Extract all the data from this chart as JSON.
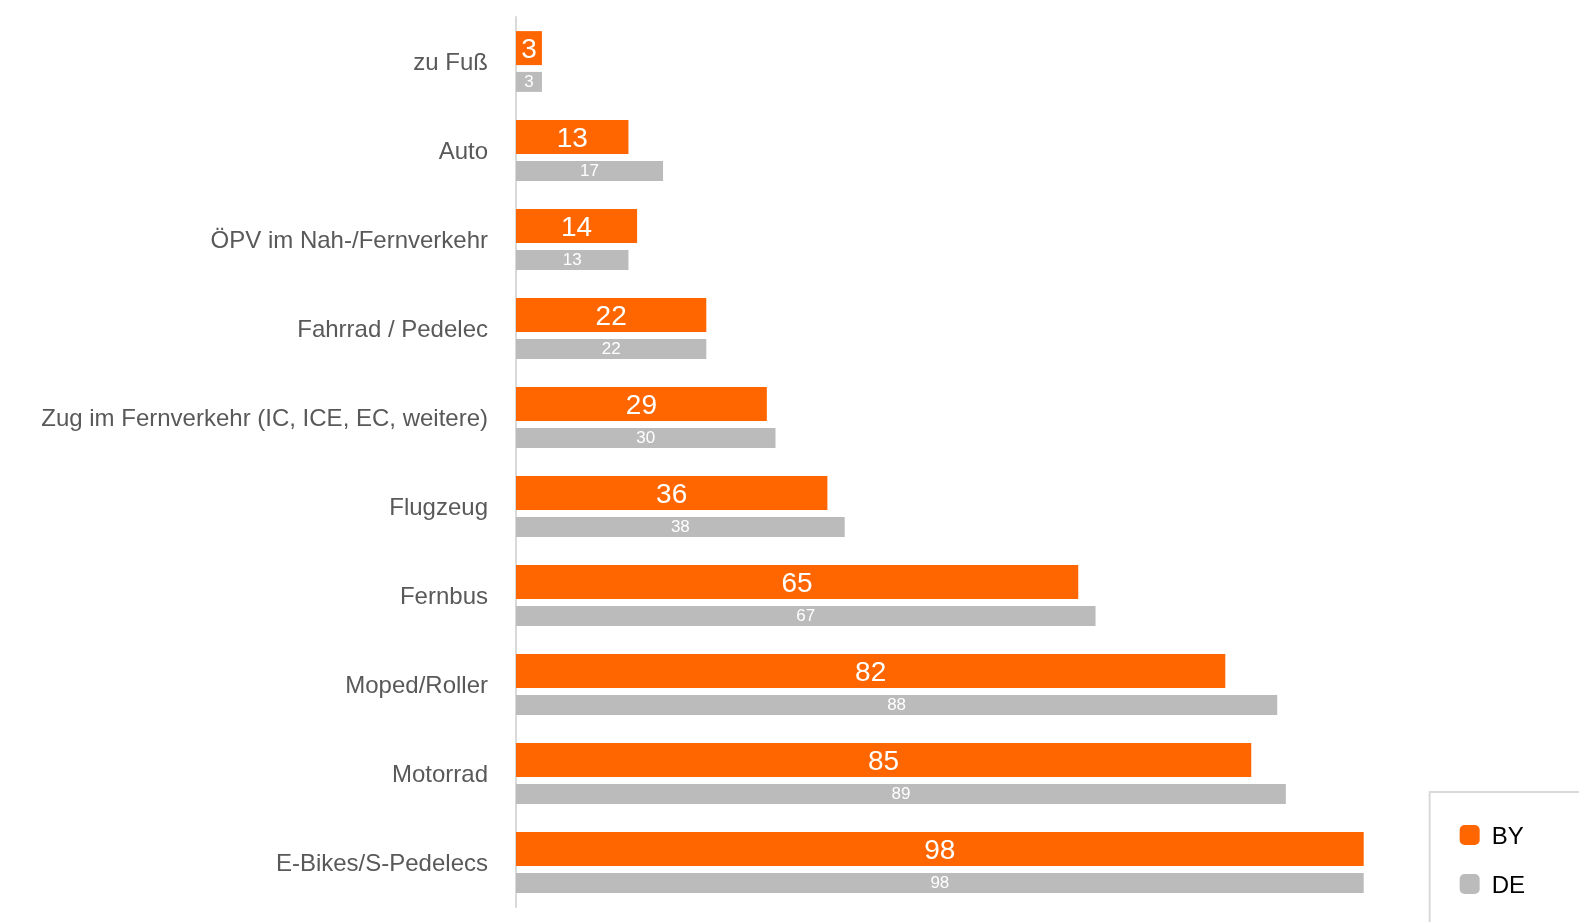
{
  "chart_data": {
    "type": "bar",
    "orientation": "horizontal",
    "categories": [
      "zu Fuß",
      "Auto",
      "ÖPV im Nah-/Fernverkehr",
      "Fahrrad / Pedelec",
      "Zug im Fernverkehr (IC, ICE, EC, weitere)",
      "Flugzeug",
      "Fernbus",
      "Moped/Roller",
      "Motorrad",
      "E-Bikes/S-Pedelecs"
    ],
    "series": [
      {
        "name": "BY",
        "color": "#ff6600",
        "values": [
          3,
          13,
          14,
          22,
          29,
          36,
          65,
          82,
          85,
          98
        ]
      },
      {
        "name": "DE",
        "color": "#bbbbbb",
        "values": [
          3,
          17,
          13,
          22,
          30,
          38,
          67,
          88,
          89,
          98
        ]
      }
    ],
    "data_labels": true,
    "tick_labels": "y",
    "legend": "bottom right"
  }
}
